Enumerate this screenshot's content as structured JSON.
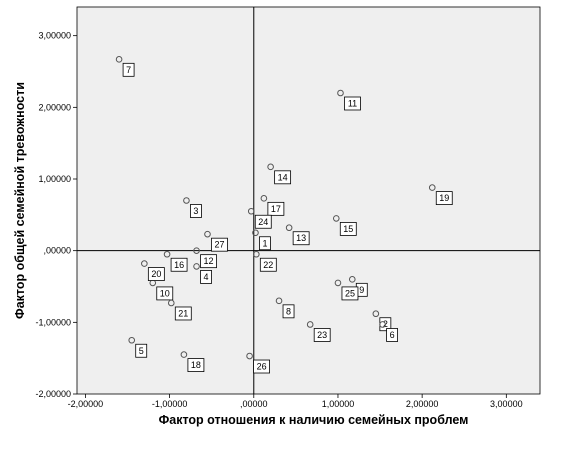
{
  "chart_data": {
    "type": "scatter",
    "xlabel": "Фактор отношения к наличию семейных проблем",
    "ylabel": "Фактор общей семейной тревожности",
    "xlim": [
      -2.1,
      3.4
    ],
    "ylim": [
      -2.0,
      3.4
    ],
    "x_ticks": [
      -2.0,
      -1.0,
      0.0,
      1.0,
      2.0,
      3.0
    ],
    "x_tick_labels": [
      "-2,00000",
      "-1,00000",
      ",00000",
      "1,00000",
      "2,00000",
      "3,00000"
    ],
    "y_ticks": [
      -2.0,
      -1.0,
      0.0,
      1.0,
      2.0,
      3.0
    ],
    "y_tick_labels": [
      "-2,00000",
      "-1,00000",
      ",00000",
      "1,00000",
      "2,00000",
      "3,00000"
    ],
    "reference_lines": {
      "x": 0.0,
      "y": 0.0
    },
    "grid": false,
    "plot_background": "#efefef",
    "point_color": "#555555",
    "points": [
      {
        "label": "1",
        "x": 0.02,
        "y": 0.25
      },
      {
        "label": "2",
        "x": 1.45,
        "y": -0.88
      },
      {
        "label": "3",
        "x": -0.8,
        "y": 0.7
      },
      {
        "label": "4",
        "x": -0.68,
        "y": -0.22
      },
      {
        "label": "5",
        "x": -1.45,
        "y": -1.25
      },
      {
        "label": "6",
        "x": 1.53,
        "y": -1.03
      },
      {
        "label": "7",
        "x": -1.6,
        "y": 2.67
      },
      {
        "label": "8",
        "x": 0.3,
        "y": -0.7
      },
      {
        "label": "9",
        "x": 1.17,
        "y": -0.4
      },
      {
        "label": "10",
        "x": -1.2,
        "y": -0.45
      },
      {
        "label": "11",
        "x": 1.03,
        "y": 2.2
      },
      {
        "label": "12",
        "x": -0.68,
        "y": 0.0
      },
      {
        "label": "13",
        "x": 0.42,
        "y": 0.32
      },
      {
        "label": "14",
        "x": 0.2,
        "y": 1.17
      },
      {
        "label": "15",
        "x": 0.98,
        "y": 0.45
      },
      {
        "label": "16",
        "x": -1.03,
        "y": -0.05
      },
      {
        "label": "17",
        "x": 0.12,
        "y": 0.73
      },
      {
        "label": "18",
        "x": -0.83,
        "y": -1.45
      },
      {
        "label": "19",
        "x": 2.12,
        "y": 0.88
      },
      {
        "label": "20",
        "x": -1.3,
        "y": -0.18
      },
      {
        "label": "21",
        "x": -0.98,
        "y": -0.73
      },
      {
        "label": "22",
        "x": 0.03,
        "y": -0.05
      },
      {
        "label": "23",
        "x": 0.67,
        "y": -1.03
      },
      {
        "label": "24",
        "x": -0.03,
        "y": 0.55
      },
      {
        "label": "25",
        "x": 1.0,
        "y": -0.45
      },
      {
        "label": "26",
        "x": -0.05,
        "y": -1.47
      },
      {
        "label": "27",
        "x": -0.55,
        "y": 0.23
      }
    ]
  }
}
